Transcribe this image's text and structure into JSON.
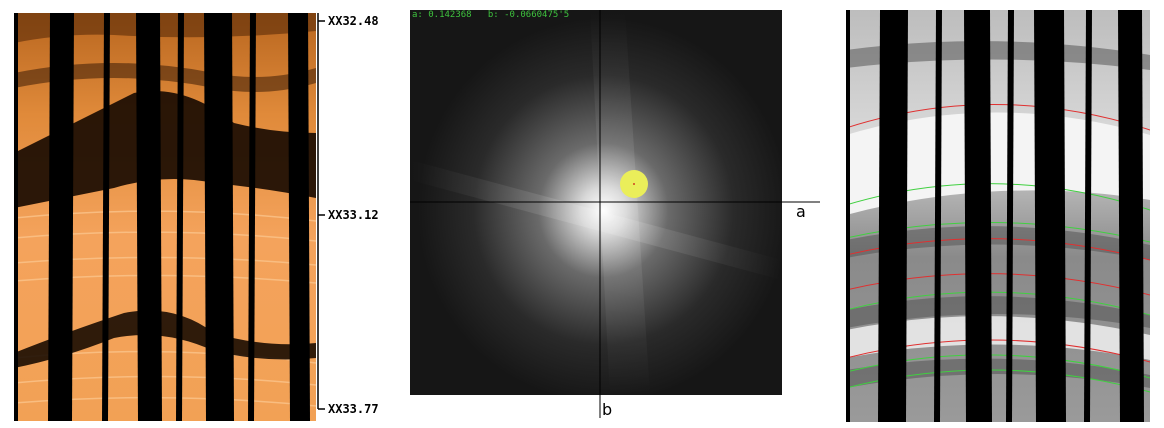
{
  "depth_scale": {
    "top": "XX32.48",
    "middle": "XX33.12",
    "bottom": "XX33.77"
  },
  "coefficient_map": {
    "readout": {
      "a_text": "a: 0.142368",
      "b_text": "b: -0.0660475'5"
    },
    "axis_a_label": "a",
    "axis_b_label": "b"
  },
  "colors": {
    "log_bright": "#f2a155",
    "log_dark": "#000000",
    "marker": "#eaee5a",
    "readout_text": "#3ec23e",
    "fit_red": "#e03030",
    "fit_green": "#40d040"
  },
  "icons": {
    "marker": "solution-marker-icon"
  }
}
